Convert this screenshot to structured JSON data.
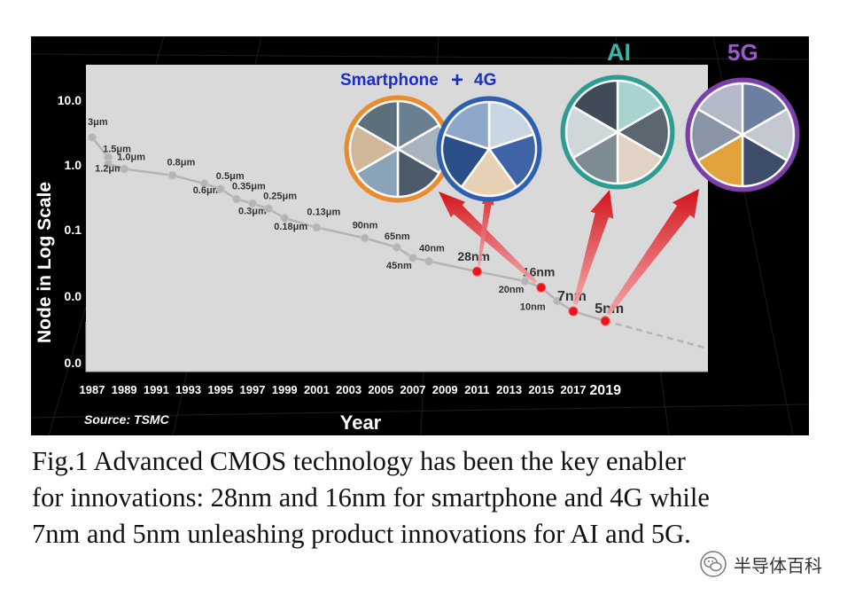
{
  "chart_data": {
    "type": "line",
    "title": "",
    "xlabel": "Year",
    "ylabel": "Node in Log Scale",
    "y_scale": "log",
    "y_tick_labels": [
      "10.0",
      "1.0",
      "0.1",
      "0.0",
      "0.0"
    ],
    "x_tick_labels": [
      "1987",
      "1989",
      "1991",
      "1993",
      "1995",
      "1997",
      "1999",
      "2001",
      "2003",
      "2005",
      "2007",
      "2009",
      "2011",
      "2013",
      "2015",
      "2017",
      "2019"
    ],
    "source_note": "Source: TSMC",
    "series": [
      {
        "points": [
          {
            "year": 1987,
            "node_um": 3.0,
            "label": "3μm"
          },
          {
            "year": 1988,
            "node_um": 1.5,
            "label": "1.5μm"
          },
          {
            "year": 1988,
            "node_um": 1.2,
            "label": "1.2μm"
          },
          {
            "year": 1989,
            "node_um": 1.0,
            "label": "1.0μm"
          },
          {
            "year": 1992,
            "node_um": 0.8,
            "label": "0.8μm"
          },
          {
            "year": 1994,
            "node_um": 0.6,
            "label": "0.6μm"
          },
          {
            "year": 1995,
            "node_um": 0.5,
            "label": "0.5μm"
          },
          {
            "year": 1996,
            "node_um": 0.35,
            "label": "0.35μm"
          },
          {
            "year": 1997,
            "node_um": 0.3,
            "label": "0.3μm"
          },
          {
            "year": 1998,
            "node_um": 0.25,
            "label": "0.25μm"
          },
          {
            "year": 1999,
            "node_um": 0.18,
            "label": "0.18μm"
          },
          {
            "year": 2001,
            "node_um": 0.13,
            "label": "0.13μm"
          },
          {
            "year": 2004,
            "node_um": 0.09,
            "label": "90nm"
          },
          {
            "year": 2006,
            "node_um": 0.065,
            "label": "65nm"
          },
          {
            "year": 2007,
            "node_um": 0.045,
            "label": "45nm"
          },
          {
            "year": 2008,
            "node_um": 0.04,
            "label": "40nm"
          },
          {
            "year": 2011,
            "node_um": 0.028,
            "label": "28nm",
            "highlight": true
          },
          {
            "year": 2014,
            "node_um": 0.02,
            "label": "20nm"
          },
          {
            "year": 2015,
            "node_um": 0.016,
            "label": "16nm",
            "highlight": true
          },
          {
            "year": 2016,
            "node_um": 0.01,
            "label": "10nm"
          },
          {
            "year": 2017,
            "node_um": 0.007,
            "label": "7nm",
            "highlight": true
          },
          {
            "year": 2019,
            "node_um": 0.005,
            "label": "5nm",
            "highlight": true
          }
        ]
      }
    ],
    "annotations": {
      "smartphone": {
        "text_a": "Smartphone",
        "plus": "+",
        "text_b": "4G"
      },
      "ai": "AI",
      "g5": "5G"
    },
    "grid": false,
    "colors": {
      "background": "#000000",
      "plot_area": "#d9d9d9",
      "line": "#b4b4b4",
      "marker": "#b4b4b4",
      "highlight": "#e8141b",
      "smartphone_text": "#1a2ec9",
      "ai_text": "#3bb3a8",
      "g5_text": "#9b59d0",
      "ring_orange": "#e98c2f",
      "ring_blue": "#2e5fb1",
      "ring_teal": "#2e9c92",
      "ring_purple": "#7b3fa8"
    }
  },
  "caption": {
    "line1": "Fig.1 Advanced CMOS technology has been the key enabler",
    "line2": "for innovations: 28nm and 16nm for smartphone and 4G while",
    "line3": "7nm and 5nm unleashing product innovations for AI and 5G."
  },
  "watermark": {
    "text": "半导体百科",
    "icon": "wechat-icon"
  }
}
